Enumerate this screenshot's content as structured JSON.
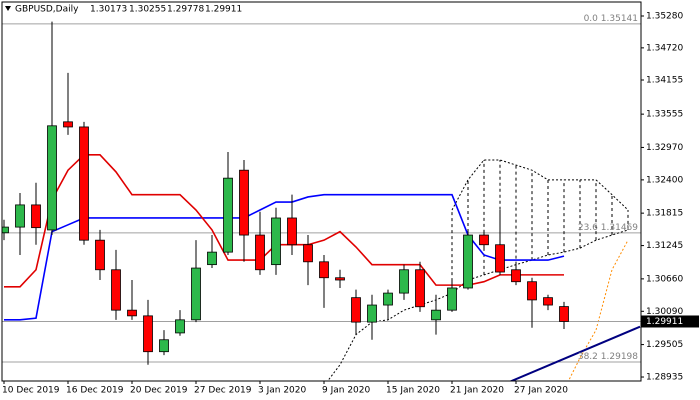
{
  "chart_data": {
    "type": "candlestick",
    "symbol": "GBPUSD,Daily",
    "categories": [
      "10 Dec 2019",
      null,
      null,
      null,
      "16 Dec 2019",
      null,
      null,
      null,
      "20 Dec 2019",
      null,
      null,
      null,
      "27 Dec 2019",
      null,
      null,
      null,
      "3 Jan 2020",
      null,
      null,
      null,
      "9 Jan 2020",
      null,
      null,
      null,
      "15 Jan 2020",
      null,
      null,
      null,
      "21 Jan 2020",
      null,
      null,
      null,
      "27 Jan 2020",
      null,
      null,
      null
    ],
    "open": [
      1.3147,
      1.3157,
      1.3196,
      1.3152,
      1.3342,
      1.3333,
      1.3134,
      1.3082,
      1.3011,
      1.3001,
      1.2938,
      1.2971,
      1.2994,
      1.3091,
      1.3113,
      1.3257,
      1.3143,
      1.3091,
      1.3173,
      1.3126,
      1.3096,
      1.3068,
      1.3033,
      1.299,
      1.302,
      1.3041,
      1.3082,
      1.2994,
      1.3011,
      1.305,
      1.3143,
      1.3126,
      1.3082,
      1.3061,
      1.3033,
      1.30173
    ],
    "high": [
      1.317,
      1.3217,
      1.3235,
      1.3518,
      1.3428,
      1.3342,
      1.3152,
      1.3117,
      1.3064,
      1.3029,
      1.2976,
      1.3011,
      1.3134,
      1.3143,
      1.3289,
      1.3275,
      1.3184,
      1.3191,
      1.3214,
      1.3143,
      1.3108,
      1.3082,
      1.3047,
      1.3038,
      1.3047,
      1.3091,
      1.3096,
      1.3038,
      1.3064,
      1.3152,
      1.3152,
      1.3187,
      1.3091,
      1.3068,
      1.3038,
      1.30255
    ],
    "low": [
      1.3134,
      1.3108,
      1.3126,
      1.3143,
      1.3319,
      1.3126,
      1.3064,
      1.2994,
      1.2994,
      1.2915,
      1.2932,
      1.2966,
      1.299,
      1.3085,
      1.3108,
      1.3096,
      1.3073,
      1.3073,
      1.3108,
      1.3055,
      1.3015,
      1.305,
      1.2968,
      1.2959,
      1.2994,
      1.3029,
      1.3008,
      1.2968,
      1.3008,
      1.3047,
      1.312,
      1.3073,
      1.3055,
      1.298,
      1.3011,
      1.29778
    ],
    "close": [
      1.3157,
      1.3196,
      1.3156,
      1.3335,
      1.3333,
      1.3134,
      1.3082,
      1.3011,
      1.3001,
      1.2938,
      1.2959,
      1.2994,
      1.3085,
      1.3113,
      1.3243,
      1.3143,
      1.3082,
      1.3173,
      1.3126,
      1.3096,
      1.3068,
      1.3064,
      1.299,
      1.302,
      1.3041,
      1.3082,
      1.3017,
      1.3011,
      1.305,
      1.3143,
      1.3126,
      1.3078,
      1.3061,
      1.3029,
      1.302,
      1.29911
    ],
    "up_color": "#2db84b",
    "down_color": "#ff0000",
    "ylim": [
      1.28865,
      1.35526
    ],
    "yticks": [
      {
        "value": 1.3528,
        "label": "1.35280"
      },
      {
        "value": 1.3472,
        "label": "1.34720"
      },
      {
        "value": 1.34155,
        "label": "1.34155"
      },
      {
        "value": 1.33555,
        "label": "1.33555"
      },
      {
        "value": 1.3297,
        "label": "1.32970"
      },
      {
        "value": 1.324,
        "label": "1.32400"
      },
      {
        "value": 1.31815,
        "label": "1.31815"
      },
      {
        "value": 1.31245,
        "label": "1.31245"
      },
      {
        "value": 1.3066,
        "label": "1.30660"
      },
      {
        "value": 1.3009,
        "label": "1.30090"
      },
      {
        "value": 1.29505,
        "label": "1.29505"
      },
      {
        "value": 1.28935,
        "label": "1.28935"
      }
    ],
    "tenkan": {
      "color": "#e00000",
      "values": [
        1.3052,
        1.3052,
        1.3082,
        1.3205,
        1.3257,
        1.3284,
        1.3284,
        1.3254,
        1.3214,
        1.3214,
        1.3214,
        1.3214,
        1.3187,
        1.3152,
        1.3099,
        1.3099,
        1.3099,
        1.3126,
        1.3126,
        1.3126,
        1.3134,
        1.3149,
        1.3122,
        1.3091,
        1.3091,
        1.3091,
        1.3091,
        1.3055,
        1.3055,
        1.3055,
        1.3061,
        1.3073,
        1.3073,
        1.3073,
        1.3073,
        1.3073
      ]
    },
    "kijun": {
      "color": "#0000ff",
      "values": [
        1.2994,
        1.2994,
        1.2997,
        1.3149,
        1.3161,
        1.3173,
        1.3173,
        1.3173,
        1.3173,
        1.3173,
        1.3173,
        1.3173,
        1.3173,
        1.3173,
        1.3173,
        1.3173,
        1.3187,
        1.3201,
        1.3201,
        1.321,
        1.3214,
        1.3214,
        1.3214,
        1.3214,
        1.3214,
        1.3214,
        1.3214,
        1.3214,
        1.3214,
        1.3143,
        1.3108,
        1.3099,
        1.3099,
        1.3099,
        1.3099,
        1.3106
      ]
    },
    "span_a": {
      "color": "#000000",
      "x": [
        20,
        21,
        22,
        23,
        24,
        25,
        26,
        27,
        28,
        29,
        30,
        31,
        32,
        33,
        34,
        35,
        36,
        37,
        38,
        39
      ],
      "values": [
        1.2878,
        1.2915,
        1.2968,
        1.299,
        1.2994,
        1.3011,
        1.302,
        1.3029,
        1.3041,
        1.3064,
        1.3073,
        1.3082,
        1.3091,
        1.3099,
        1.3108,
        1.3113,
        1.312,
        1.3134,
        1.3143,
        1.3152
      ]
    },
    "span_b": {
      "color": "#000000",
      "x": [
        28,
        29,
        30,
        31,
        32,
        33,
        34,
        35,
        36,
        37,
        38,
        39
      ],
      "values": [
        1.3187,
        1.324,
        1.3275,
        1.3275,
        1.3266,
        1.3257,
        1.324,
        1.324,
        1.324,
        1.324,
        1.3214,
        1.3187
      ]
    },
    "lagging": {
      "color": "#ff8c00",
      "x": [
        35,
        36,
        37,
        38,
        39
      ],
      "values": [
        1.2871,
        1.2927,
        1.2976,
        1.3082,
        1.3134
      ]
    },
    "trendline": {
      "color": "#000080",
      "x": [
        30,
        39.75
      ],
      "values": [
        1.2866,
        1.2982
      ]
    },
    "fibo": [
      {
        "ratio": "0.0",
        "price": 1.35141
      },
      {
        "ratio": "23.6",
        "price": 1.31469
      },
      {
        "ratio": "38.2",
        "price": 1.29198
      }
    ]
  }
}
